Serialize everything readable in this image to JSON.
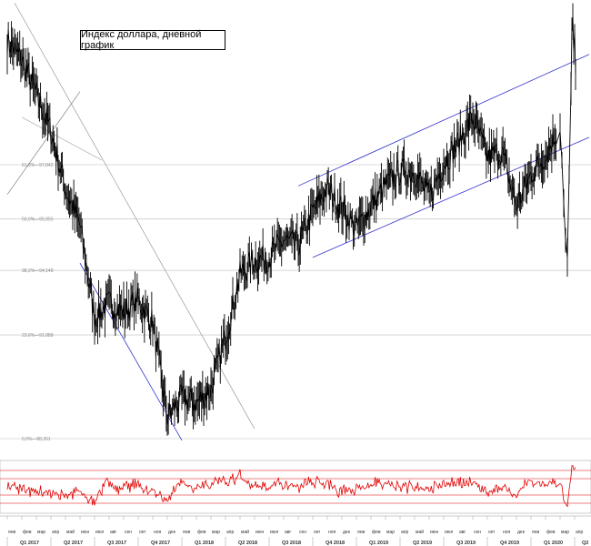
{
  "chart_data": {
    "type": "line",
    "title": "Индекс доллара, дневной график",
    "colors": {
      "price": "#000000",
      "channel": "#3333cc",
      "trendline": "#999999",
      "fib": "#bbbbbb",
      "rsi": "#e00000",
      "rsi_levels": "#e00000"
    },
    "price_series_monthly_close": [
      102.2,
      101.5,
      100.3,
      99.0,
      97.0,
      95.7,
      92.5,
      93.0,
      92.7,
      93.1,
      92.3,
      89.0,
      89.7,
      89.5,
      90.0,
      91.8,
      94.0,
      94.5,
      94.6,
      95.2,
      95.0,
      96.2,
      97.0,
      96.3,
      95.6,
      96.4,
      97.1,
      97.6,
      97.6,
      96.7,
      97.9,
      98.6,
      99.5,
      98.1,
      98.3,
      96.4,
      97.5,
      98.2,
      99.2,
      99.0
    ],
    "price_extremes": {
      "high_2020": 103.0,
      "low_2018": 88.3,
      "low_2020": 94.6
    },
    "fib_levels": [
      {
        "label": "61,8%—97,842",
        "value": 97.842
      },
      {
        "label": "50,0%—95,955",
        "value": 95.955
      },
      {
        "label": "38,2%—94,148",
        "value": 94.148
      },
      {
        "label": "23,6%—91,888",
        "value": 91.888
      },
      {
        "label": "0,0%—88,261",
        "value": 88.261
      }
    ],
    "rsi_levels": [
      70,
      60,
      40,
      30
    ],
    "x_months": [
      "янв",
      "фев",
      "мар",
      "апр",
      "май",
      "июн",
      "июл",
      "авг",
      "сен",
      "окт",
      "ноя",
      "дек",
      "янв",
      "фев",
      "мар",
      "апр",
      "май",
      "июн",
      "июл",
      "авг",
      "сен",
      "окт",
      "ноя",
      "дек",
      "янв",
      "фев",
      "мар",
      "апр",
      "май",
      "июн",
      "июл",
      "авг",
      "сен",
      "окт",
      "ноя",
      "дек",
      "янв",
      "фев",
      "мар",
      "апр"
    ],
    "x_quarters": [
      "Q1 2017",
      "Q2 2017",
      "Q3 2017",
      "Q4 2017",
      "Q1 2018",
      "Q2 2018",
      "Q3 2018",
      "Q4 2018",
      "Q1 2019",
      "Q2 2019",
      "Q3 2019",
      "Q4 2019",
      "Q1 2020",
      "Q2"
    ]
  }
}
